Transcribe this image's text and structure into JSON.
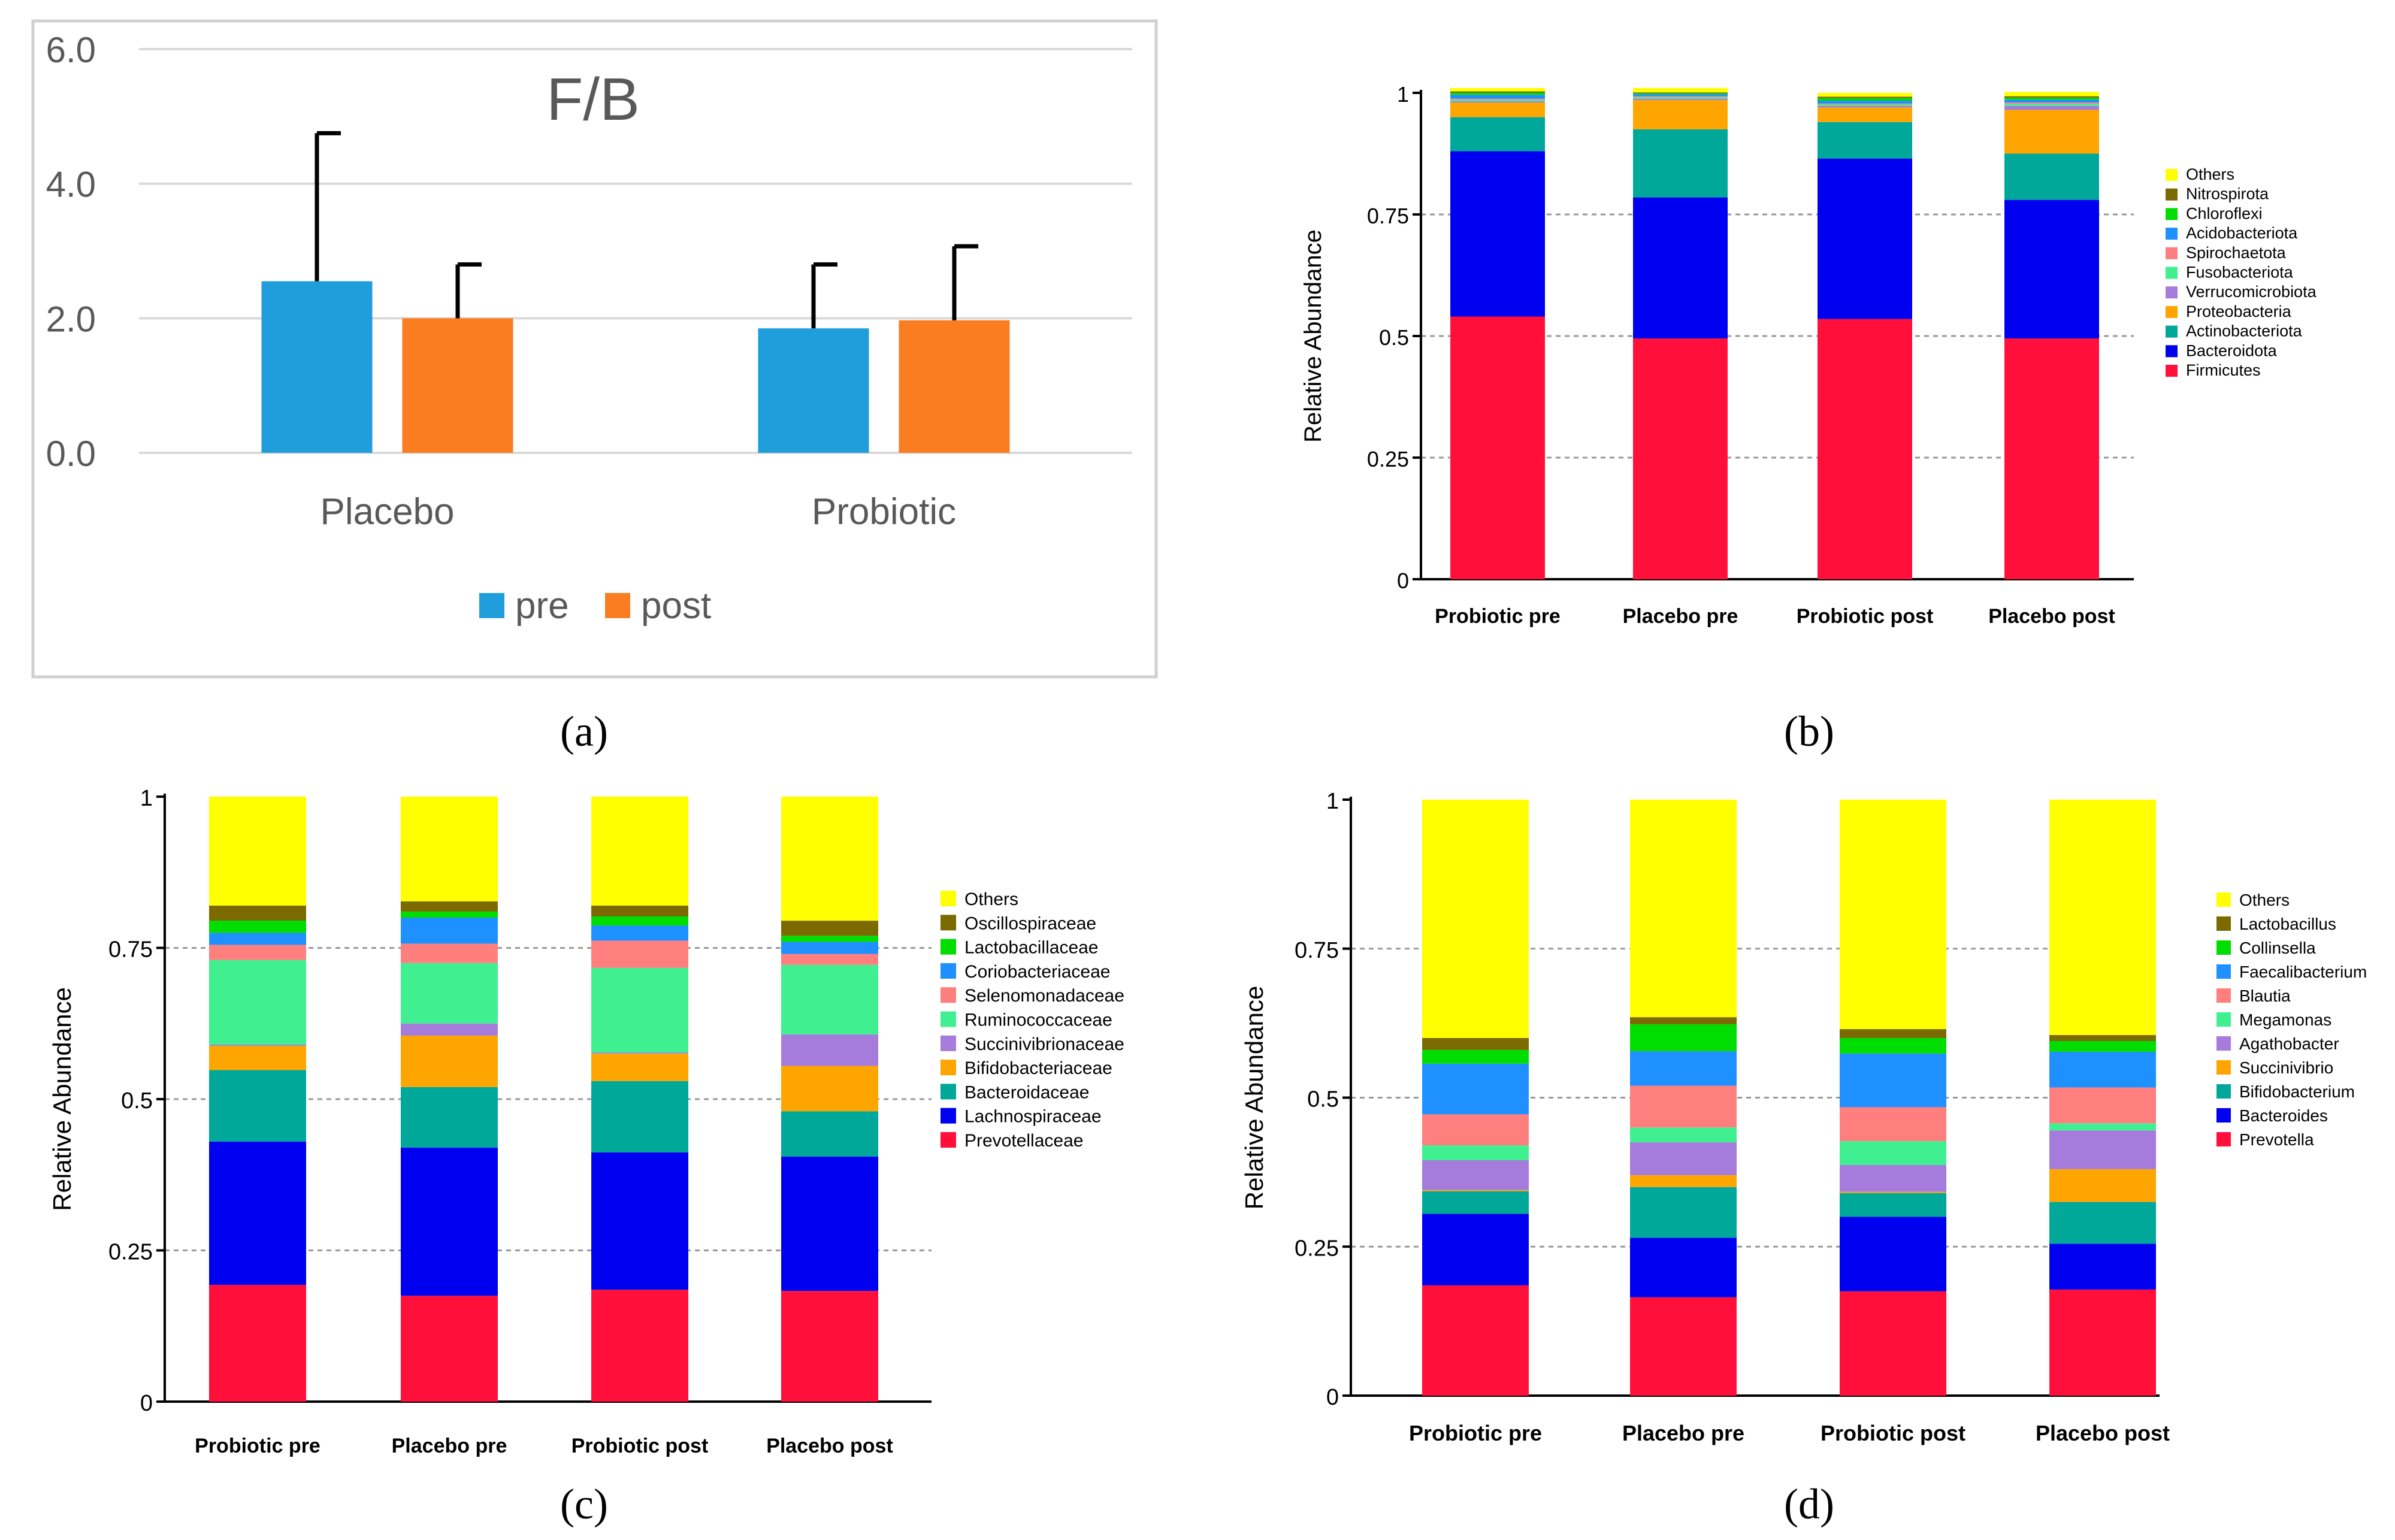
{
  "chart_data": [
    {
      "id": "a",
      "panel_label": "(a)",
      "type": "bar",
      "title": "F/B",
      "categories": [
        "Placebo",
        "Probiotic"
      ],
      "series": [
        {
          "name": "pre",
          "values": [
            2.55,
            1.85
          ],
          "error": [
            2.2,
            0.95
          ]
        },
        {
          "name": "post",
          "values": [
            2.0,
            1.97
          ],
          "error": [
            0.8,
            1.1
          ]
        }
      ],
      "ylim": [
        0,
        6
      ],
      "yticks": [
        "0.0",
        "2.0",
        "4.0",
        "6.0"
      ],
      "colors": {
        "pre": "#1f9edb",
        "post": "#fb7d22"
      },
      "grid": true,
      "legend_position": "bottom"
    },
    {
      "id": "b",
      "panel_label": "(b)",
      "type": "bar",
      "stacked": true,
      "ylabel": "Relative Abundance",
      "ylim": [
        0,
        1
      ],
      "yticks": [
        "0",
        "0.25",
        "0.5",
        "0.75",
        "1"
      ],
      "categories": [
        "Probiotic pre",
        "Placebo pre",
        "Probiotic post",
        "Placebo post"
      ],
      "legend": [
        "Others",
        "Nitrospirota",
        "Chloroflexi",
        "Acidobacteriota",
        "Spirochaetota",
        "Fusobacteriota",
        "Verrucomicrobiota",
        "Proteobacteria",
        "Actinobacteriota",
        "Bacteroidota",
        "Firmicutes"
      ],
      "series": [
        {
          "name": "Firmicutes",
          "color": "#ff0f3a",
          "values": [
            0.54,
            0.495,
            0.535,
            0.495
          ]
        },
        {
          "name": "Bacteroidota",
          "color": "#0000f0",
          "values": [
            0.34,
            0.29,
            0.33,
            0.285
          ]
        },
        {
          "name": "Actinobacteriota",
          "color": "#00a89a",
          "values": [
            0.07,
            0.14,
            0.075,
            0.095
          ]
        },
        {
          "name": "Proteobacteria",
          "color": "#ffa500",
          "values": [
            0.03,
            0.06,
            0.03,
            0.09
          ]
        },
        {
          "name": "Verrucomicrobiota",
          "color": "#a57bdc",
          "values": [
            0.003,
            0.003,
            0.003,
            0.008
          ]
        },
        {
          "name": "Fusobacteriota",
          "color": "#40f090",
          "values": [
            0.003,
            0.003,
            0.003,
            0.004
          ]
        },
        {
          "name": "Spirochaetota",
          "color": "#ff7f7f",
          "values": [
            0.002,
            0.002,
            0.002,
            0.003
          ]
        },
        {
          "name": "Acidobacteriota",
          "color": "#1e90ff",
          "values": [
            0.008,
            0.004,
            0.006,
            0.006
          ]
        },
        {
          "name": "Chloroflexi",
          "color": "#00dd00",
          "values": [
            0.004,
            0.002,
            0.005,
            0.004
          ]
        },
        {
          "name": "Nitrospirota",
          "color": "#7a6a00",
          "values": [
            0.003,
            0.002,
            0.003,
            0.003
          ]
        },
        {
          "name": "Others",
          "color": "#ffff00",
          "values": [
            0.007,
            0.009,
            0.008,
            0.009
          ]
        }
      ],
      "grid": true,
      "legend_position": "right"
    },
    {
      "id": "c",
      "panel_label": "(c)",
      "type": "bar",
      "stacked": true,
      "ylabel": "Relative Abundance",
      "ylim": [
        0,
        1
      ],
      "yticks": [
        "0",
        "0.25",
        "0.5",
        "0.75",
        "1"
      ],
      "categories": [
        "Probiotic pre",
        "Placebo pre",
        "Probiotic post",
        "Placebo post"
      ],
      "legend": [
        "Others",
        "Oscillospiraceae",
        "Lactobacillaceae",
        "Coriobacteriaceae",
        "Selenomonadaceae",
        "Ruminococcaceae",
        "Succinivibrionaceae",
        "Bifidobacteriaceae",
        "Bacteroidaceae",
        "Lachnospiraceae",
        "Prevotellaceae"
      ],
      "series": [
        {
          "name": "Prevotellaceae",
          "color": "#ff0f3a",
          "values": [
            0.193,
            0.175,
            0.185,
            0.183
          ]
        },
        {
          "name": "Lachnospiraceae",
          "color": "#0000f0",
          "values": [
            0.237,
            0.245,
            0.227,
            0.222
          ]
        },
        {
          "name": "Bacteroidaceae",
          "color": "#00a89a",
          "values": [
            0.118,
            0.1,
            0.118,
            0.075
          ]
        },
        {
          "name": "Bifidobacteriaceae",
          "color": "#ffa500",
          "values": [
            0.04,
            0.085,
            0.045,
            0.075
          ]
        },
        {
          "name": "Succinivibrionaceae",
          "color": "#a57bdc",
          "values": [
            0.002,
            0.02,
            0.002,
            0.052
          ]
        },
        {
          "name": "Ruminococcaceae",
          "color": "#40f090",
          "values": [
            0.14,
            0.1,
            0.14,
            0.115
          ]
        },
        {
          "name": "Selenomonadaceae",
          "color": "#ff7f7f",
          "values": [
            0.025,
            0.032,
            0.045,
            0.018
          ]
        },
        {
          "name": "Coriobacteriaceae",
          "color": "#1e90ff",
          "values": [
            0.02,
            0.043,
            0.025,
            0.02
          ]
        },
        {
          "name": "Lactobacillaceae",
          "color": "#00dd00",
          "values": [
            0.02,
            0.01,
            0.015,
            0.01
          ]
        },
        {
          "name": "Oscillospiraceae",
          "color": "#7a6a00",
          "values": [
            0.025,
            0.017,
            0.018,
            0.025
          ]
        },
        {
          "name": "Others",
          "color": "#ffff00",
          "values": [
            0.18,
            0.173,
            0.18,
            0.205
          ]
        }
      ],
      "grid": true,
      "legend_position": "right"
    },
    {
      "id": "d",
      "panel_label": "(d)",
      "type": "bar",
      "stacked": true,
      "ylabel": "Relative Abundance",
      "ylim": [
        0,
        1
      ],
      "yticks": [
        "0",
        "0.25",
        "0.5",
        "0.75",
        "1"
      ],
      "categories": [
        "Probiotic pre",
        "Placebo pre",
        "Probiotic post",
        "Placebo post"
      ],
      "legend": [
        "Others",
        "Lactobacillus",
        "Collinsella",
        "Faecalibacterium",
        "Blautia",
        "Megamonas",
        "Agathobacter",
        "Succinivibrio",
        "Bifidobacterium",
        "Bacteroides",
        "Prevotella"
      ],
      "series": [
        {
          "name": "Prevotella",
          "color": "#ff0f3a",
          "values": [
            0.185,
            0.165,
            0.175,
            0.178
          ]
        },
        {
          "name": "Bacteroides",
          "color": "#0000f0",
          "values": [
            0.12,
            0.1,
            0.125,
            0.077
          ]
        },
        {
          "name": "Bifidobacterium",
          "color": "#00a89a",
          "values": [
            0.038,
            0.085,
            0.04,
            0.07
          ]
        },
        {
          "name": "Succinivibrio",
          "color": "#ffa500",
          "values": [
            0.002,
            0.02,
            0.002,
            0.055
          ]
        },
        {
          "name": "Agathobacter",
          "color": "#a57bdc",
          "values": [
            0.05,
            0.055,
            0.045,
            0.065
          ]
        },
        {
          "name": "Megamonas",
          "color": "#40f090",
          "values": [
            0.025,
            0.025,
            0.04,
            0.012
          ]
        },
        {
          "name": "Blautia",
          "color": "#ff7f7f",
          "values": [
            0.052,
            0.07,
            0.057,
            0.06
          ]
        },
        {
          "name": "Faecalibacterium",
          "color": "#1e90ff",
          "values": [
            0.085,
            0.058,
            0.09,
            0.06
          ]
        },
        {
          "name": "Collinsella",
          "color": "#00dd00",
          "values": [
            0.023,
            0.045,
            0.026,
            0.018
          ]
        },
        {
          "name": "Lactobacillus",
          "color": "#7a6a00",
          "values": [
            0.02,
            0.012,
            0.015,
            0.01
          ]
        },
        {
          "name": "Others",
          "color": "#ffff00",
          "values": [
            0.4,
            0.365,
            0.385,
            0.395
          ]
        }
      ],
      "grid": true,
      "legend_position": "right"
    }
  ]
}
